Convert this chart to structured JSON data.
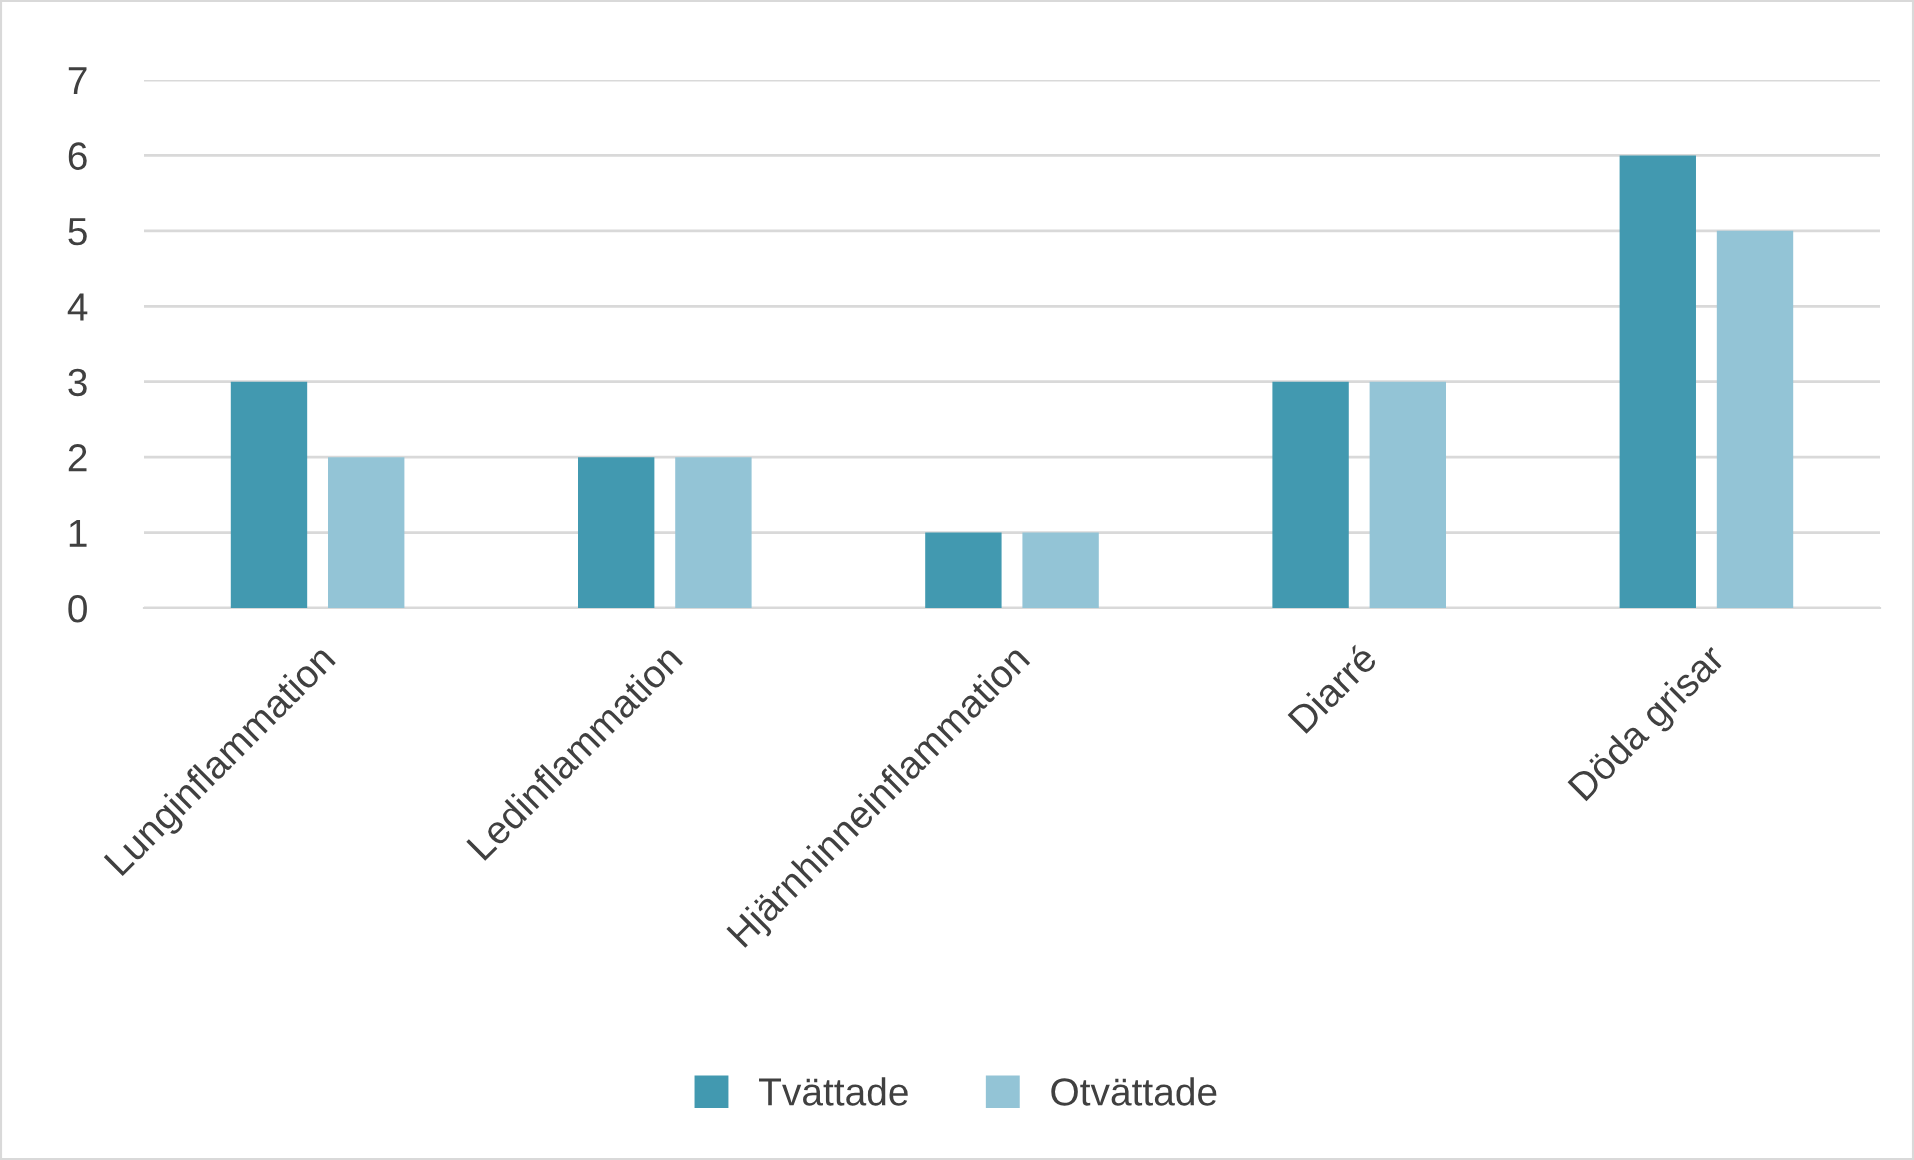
{
  "chart_data": {
    "type": "bar",
    "categories": [
      "Lunginflammation",
      "Ledinflammation",
      "Hjärnhinneinflammation",
      "Diarré",
      "Döda grisar"
    ],
    "series": [
      {
        "name": "Tvättade",
        "color": "#4299b0",
        "values": [
          3,
          2,
          1,
          3,
          6
        ]
      },
      {
        "name": "Otvättade",
        "color": "#93c4d6",
        "values": [
          2,
          2,
          1,
          3,
          5
        ]
      }
    ],
    "ylim": [
      0,
      7
    ],
    "yticks": [
      0,
      1,
      2,
      3,
      4,
      5,
      6,
      7
    ],
    "grid": "y",
    "legend": "bottom"
  }
}
